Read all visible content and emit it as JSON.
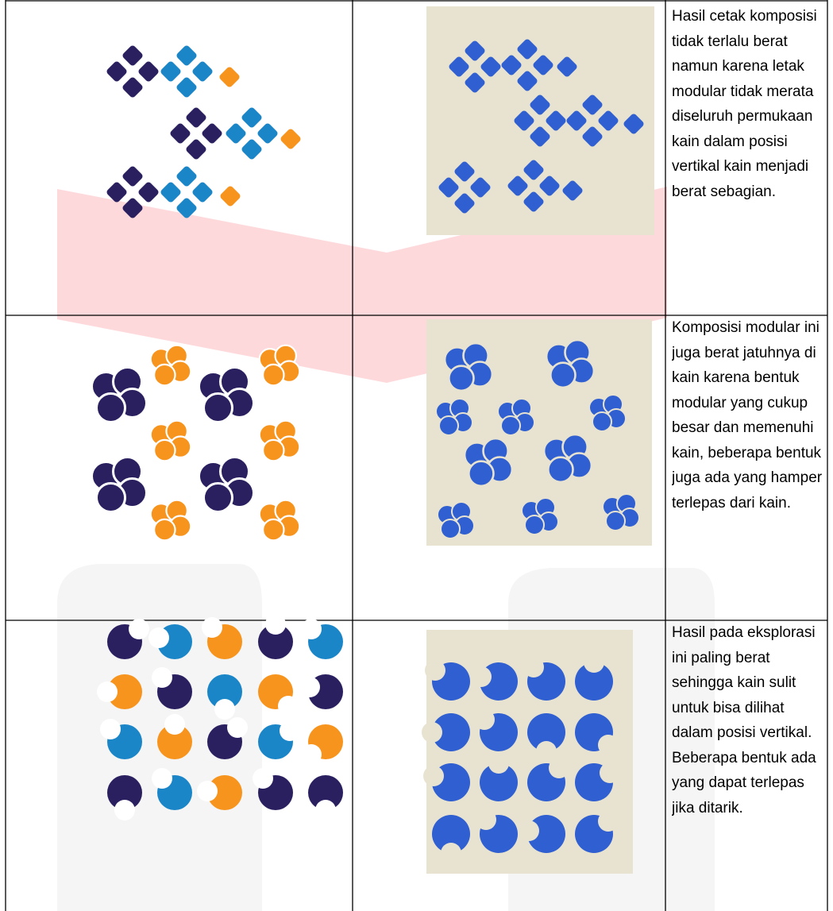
{
  "table": {
    "rows": [
      {
        "description": "Hasil cetak komposisi tidak terlalu berat namun karena letak modular tidak merata diseluruh permukaan kain dalam posisi vertikal kain menjadi berat sebagian."
      },
      {
        "description": "Komposisi modular ini juga berat jatuhnya di kain karena bentuk modular yang cukup besar dan memenuhi kain, beberapa bentuk juga ada yang hamper terlepas dari kain."
      },
      {
        "description": "Hasil pada eksplorasi ini paling berat sehingga kain sulit untuk bisa dilihat dalam posisi vertikal. Beberapa bentuk ada yang dapat terlepas jika ditarik."
      }
    ]
  }
}
